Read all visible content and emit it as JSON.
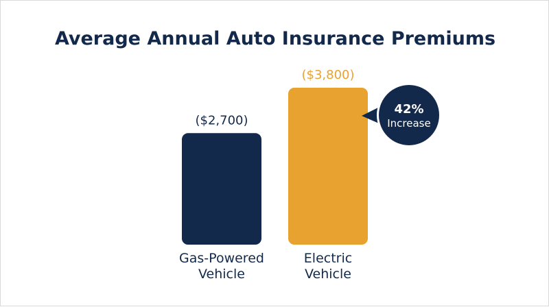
{
  "chart_data": {
    "type": "bar",
    "title": "Average Annual Auto Insurance Premiums",
    "categories": [
      {
        "line1": "Gas-Powered",
        "line2": "Vehicle"
      },
      {
        "line1": "Electric",
        "line2": "Vehicle"
      }
    ],
    "values": [
      2700,
      3800
    ],
    "value_labels": [
      "($2,700)",
      "($3,800)"
    ],
    "colors": [
      "#13294b",
      "#e8a22f"
    ],
    "ylim": [
      0,
      3800
    ],
    "grid": false,
    "callout": {
      "value": "42%",
      "text": "Increase",
      "color": "#13294b"
    }
  }
}
